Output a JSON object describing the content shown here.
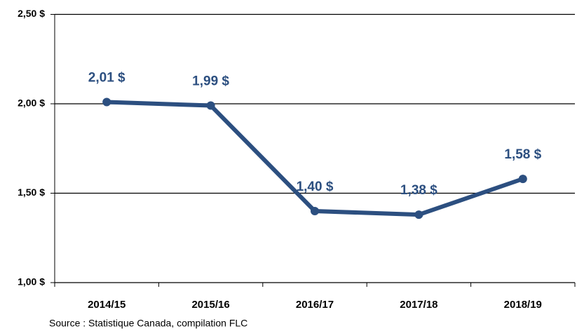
{
  "chart_data": {
    "type": "line",
    "categories": [
      "2014/15",
      "2015/16",
      "2016/17",
      "2017/18",
      "2018/19"
    ],
    "values": [
      2.01,
      1.99,
      1.4,
      1.38,
      1.58
    ],
    "value_labels": [
      "2,01 $",
      "1,99 $",
      "1,40 $",
      "1,38 $",
      "1,58 $"
    ],
    "color": "#2c4f80",
    "ylim": [
      1.0,
      2.5
    ],
    "yticks": [
      {
        "value": 1.0,
        "label": "1,00 $"
      },
      {
        "value": 1.5,
        "label": "1,50 $"
      },
      {
        "value": 2.0,
        "label": "2,00 $"
      },
      {
        "value": 2.5,
        "label": "2,50 $"
      }
    ],
    "grid": true,
    "annotation": "Source : Statistique Canada, compilation FLC"
  }
}
